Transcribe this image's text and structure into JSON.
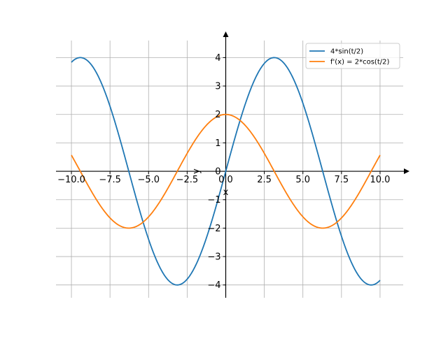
{
  "chart_data": {
    "type": "line",
    "title": "",
    "xlabel": "x",
    "ylabel": "y",
    "xlim": [
      -11,
      11.5
    ],
    "ylim": [
      -4.45,
      4.6
    ],
    "grid": true,
    "legend_position": "top-right",
    "x_ticks": [
      -10.0,
      -7.5,
      -5.0,
      -2.5,
      0.0,
      2.5,
      5.0,
      7.5,
      10.0
    ],
    "x_tick_labels": [
      "−10.0",
      "−7.5",
      "−5.0",
      "−2.5",
      "0.0",
      "2.5",
      "5.0",
      "7.5",
      "10.0"
    ],
    "y_ticks": [
      -4,
      -3,
      -2,
      -1,
      0,
      1,
      2,
      3,
      4
    ],
    "y_tick_labels": [
      "−4",
      "−3",
      "−2",
      "−1",
      "0",
      "1",
      "2",
      "3",
      "4"
    ],
    "x": [
      -10,
      -9.5,
      -9,
      -8.5,
      -8,
      -7.5,
      -7,
      -6.5,
      -6,
      -5.5,
      -5,
      -4.5,
      -4,
      -3.5,
      -3,
      -2.5,
      -2,
      -1.5,
      -1,
      -0.5,
      0,
      0.5,
      1,
      1.5,
      2,
      2.5,
      3,
      3.5,
      4,
      4.5,
      5,
      5.5,
      6,
      6.5,
      7,
      7.5,
      8,
      8.5,
      9,
      9.5,
      10
    ],
    "series": [
      {
        "name": "4*sin(t/2)",
        "color": "#1f77b4",
        "values": [
          3.836,
          3.999,
          3.91,
          3.579,
          3.027,
          2.286,
          1.403,
          0.433,
          -0.564,
          -1.523,
          -2.394,
          -3.129,
          -3.637,
          -3.936,
          -3.99,
          -3.796,
          -3.366,
          -2.727,
          -1.918,
          -0.99,
          0.0,
          0.99,
          1.918,
          2.727,
          3.366,
          3.796,
          3.99,
          3.936,
          3.637,
          3.129,
          2.394,
          1.523,
          0.564,
          -0.433,
          -1.403,
          -2.286,
          -3.027,
          -3.579,
          -3.91,
          -3.999,
          -3.836
        ]
      },
      {
        "name": "f'(x) = 2*cos(t/2)",
        "color": "#ff7f0e",
        "values": [
          0.567,
          -0.0,
          -0.422,
          -0.894,
          -1.307,
          -1.641,
          -1.873,
          -1.976,
          -1.98,
          -1.85,
          -1.602,
          -1.256,
          -0.832,
          -0.35,
          0.141,
          0.63,
          1.081,
          1.464,
          1.755,
          1.938,
          2.0,
          1.938,
          1.755,
          1.464,
          1.081,
          0.63,
          0.141,
          -0.35,
          -0.832,
          -1.256,
          -1.602,
          -1.85,
          -1.98,
          -1.976,
          -1.873,
          -1.641,
          -1.307,
          -0.894,
          -0.422,
          -0.0,
          0.567
        ]
      }
    ]
  }
}
